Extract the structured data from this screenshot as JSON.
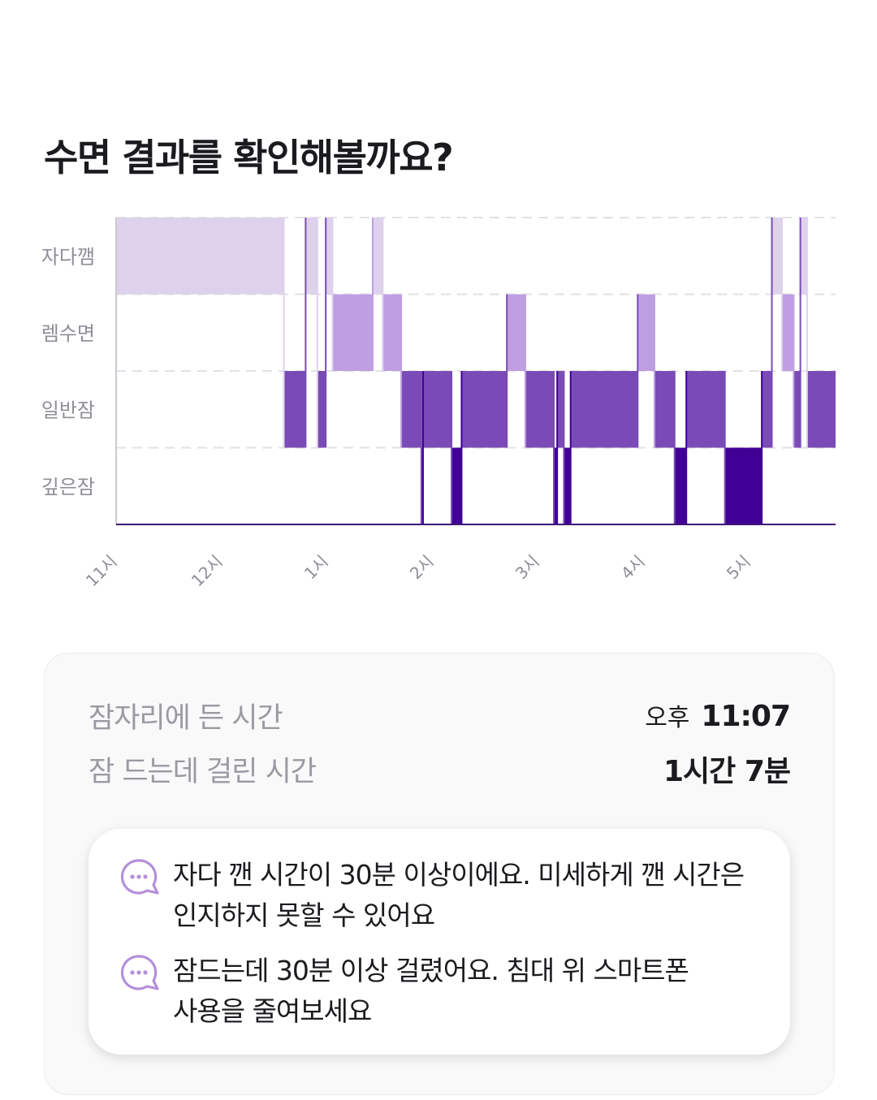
{
  "header": {
    "title": "수면 결과를 확인해볼까요?"
  },
  "chart_data": {
    "type": "timeline",
    "stages": [
      "자다깸",
      "렘수면",
      "일반잠",
      "깊은잠"
    ],
    "x_ticks": [
      "11시",
      "12시",
      "1시",
      "2시",
      "3시",
      "4시",
      "5시"
    ],
    "x_range": [
      "22:59",
      "06:08"
    ],
    "grid": true,
    "colors": {
      "자다깸": "#ddd1ec",
      "렘수면": "#be9fe1",
      "일반잠": "#7a4bb6",
      "깊은잠": "#410095"
    },
    "segments": [
      {
        "stage": "자다깸",
        "start": "22:59",
        "end": "23:59"
      },
      {
        "stage": "자다깸",
        "start": "23:59",
        "end": "00:39"
      },
      {
        "stage": "일반잠",
        "start": "00:39",
        "end": "00:52"
      },
      {
        "stage": "자다깸",
        "start": "00:52",
        "end": "00:59"
      },
      {
        "stage": "일반잠",
        "start": "00:59",
        "end": "01:04"
      },
      {
        "stage": "자다깸",
        "start": "01:04",
        "end": "01:08"
      },
      {
        "stage": "렘수면",
        "start": "01:08",
        "end": "01:32"
      },
      {
        "stage": "자다깸",
        "start": "01:32",
        "end": "01:38"
      },
      {
        "stage": "렘수면",
        "start": "01:38",
        "end": "01:49"
      },
      {
        "stage": "일반잠",
        "start": "01:49",
        "end": "02:01"
      },
      {
        "stage": "깊은잠",
        "start": "02:01",
        "end": "02:02"
      },
      {
        "stage": "일반잠",
        "start": "02:02",
        "end": "02:19"
      },
      {
        "stage": "깊은잠",
        "start": "02:19",
        "end": "02:25"
      },
      {
        "stage": "일반잠",
        "start": "02:25",
        "end": "02:52"
      },
      {
        "stage": "렘수면",
        "start": "02:52",
        "end": "03:03"
      },
      {
        "stage": "일반잠",
        "start": "03:03",
        "end": "03:20"
      },
      {
        "stage": "깊은잠",
        "start": "03:20",
        "end": "03:22"
      },
      {
        "stage": "일반잠",
        "start": "03:22",
        "end": "03:26"
      },
      {
        "stage": "깊은잠",
        "start": "03:26",
        "end": "03:30"
      },
      {
        "stage": "일반잠",
        "start": "03:30",
        "end": "04:10"
      },
      {
        "stage": "렘수면",
        "start": "04:10",
        "end": "04:20"
      },
      {
        "stage": "일반잠",
        "start": "04:20",
        "end": "04:32"
      },
      {
        "stage": "깊은잠",
        "start": "04:32",
        "end": "04:39"
      },
      {
        "stage": "일반잠",
        "start": "04:39",
        "end": "05:02"
      },
      {
        "stage": "깊은잠",
        "start": "05:02",
        "end": "05:24"
      },
      {
        "stage": "일반잠",
        "start": "05:24",
        "end": "05:30"
      },
      {
        "stage": "자다깸",
        "start": "05:30",
        "end": "05:36"
      },
      {
        "stage": "렘수면",
        "start": "05:36",
        "end": "05:43"
      },
      {
        "stage": "일반잠",
        "start": "05:43",
        "end": "05:47"
      },
      {
        "stage": "자다깸",
        "start": "05:47",
        "end": "05:51"
      },
      {
        "stage": "일반잠",
        "start": "05:51",
        "end": "06:08"
      }
    ]
  },
  "summary": {
    "rows": [
      {
        "label": "잠자리에 든 시간",
        "prefix": "오후",
        "value": "11:07"
      },
      {
        "label": "잠 드는데 걸린 시간",
        "prefix": "",
        "value": "1시간 7분"
      }
    ],
    "tips": [
      {
        "icon": "chat-bubble-icon",
        "text": "자다 깬 시간이 30분 이상이에요. 미세하게 깬 시간은\n인지하지 못할 수 있어요"
      },
      {
        "icon": "chat-bubble-icon",
        "text": "잠드는데 30분 이상 걸렸어요. 침대 위 스마트폰\n사용을 줄여보세요"
      }
    ]
  }
}
